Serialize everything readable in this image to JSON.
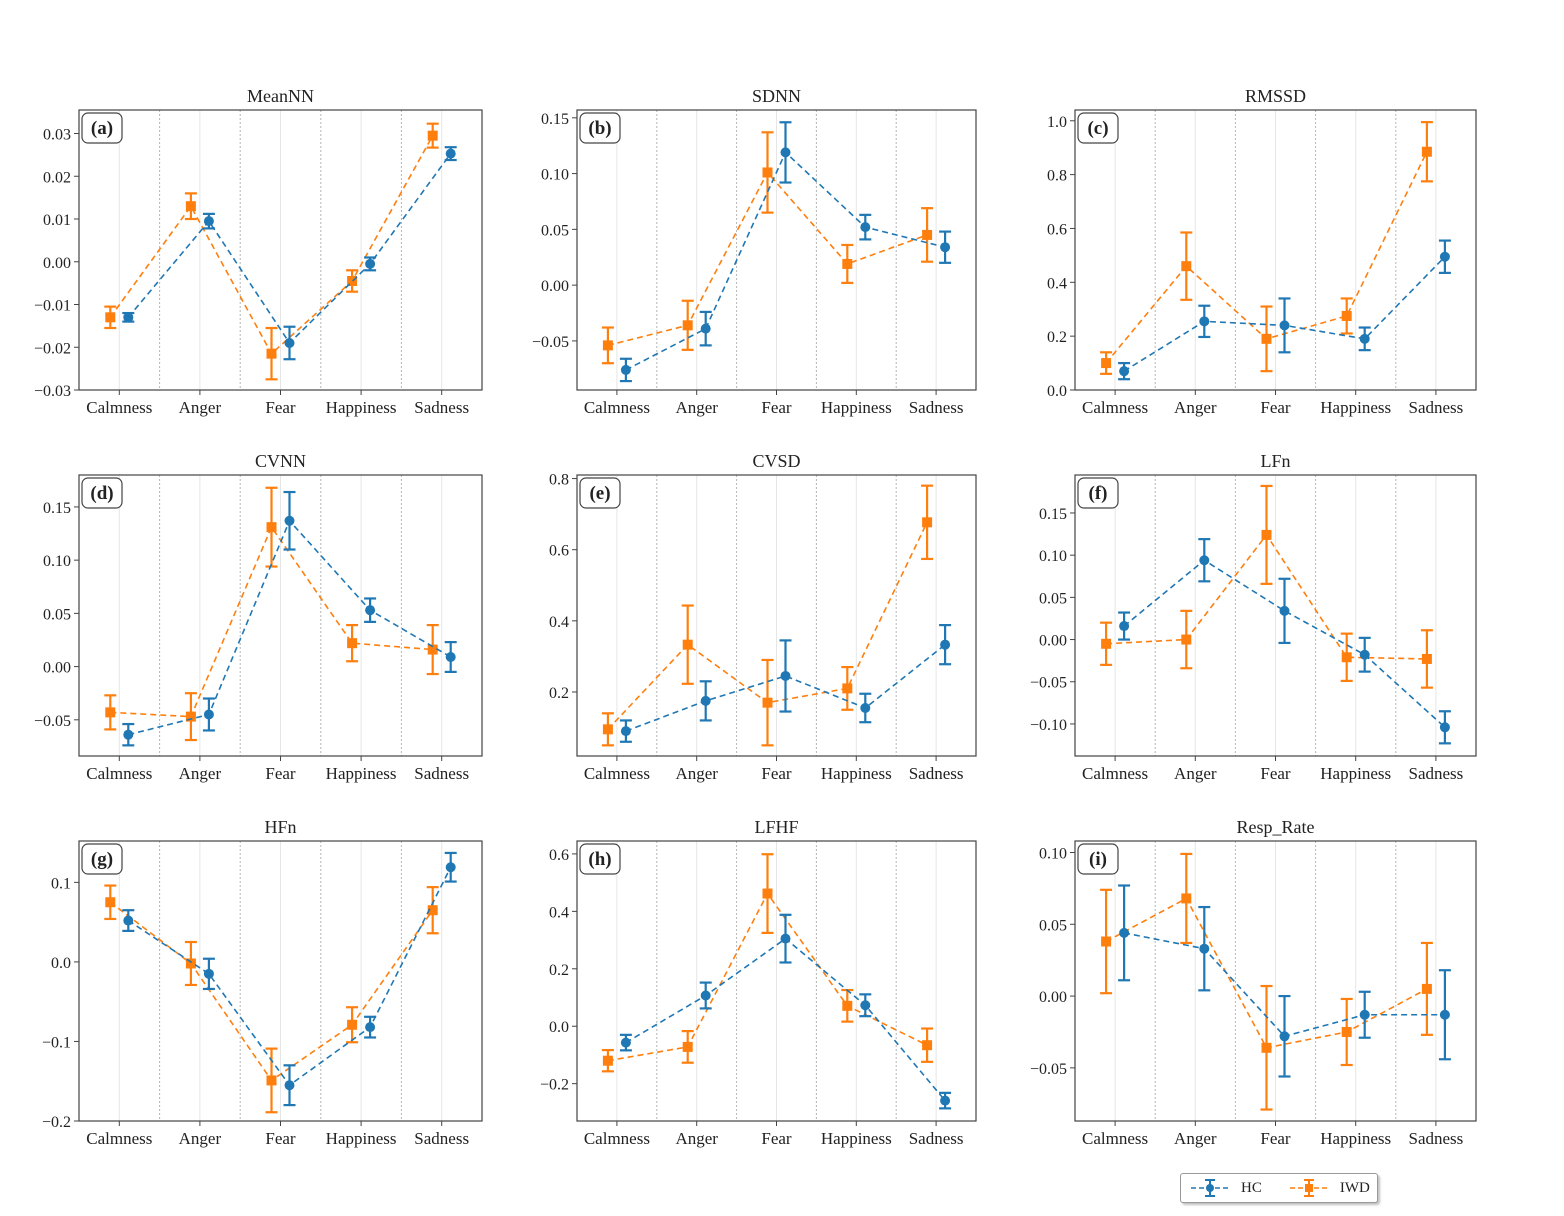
{
  "figure": {
    "legend": [
      {
        "label": "HC",
        "color": "#1f77b4",
        "marker": "circle"
      },
      {
        "label": "IWD",
        "color": "#ff7f0e",
        "marker": "square"
      }
    ]
  },
  "chart_data": [
    {
      "type": "line",
      "panel": "(a)",
      "title": "MeanNN",
      "categories": [
        "Calmness",
        "Anger",
        "Fear",
        "Happiness",
        "Sadness"
      ],
      "ylim": [
        -0.03,
        0.0355
      ],
      "yticks": [
        -0.03,
        -0.02,
        -0.01,
        0.0,
        0.01,
        0.02,
        0.03
      ],
      "ytick_labels": [
        "−0.03",
        "−0.02",
        "−0.01",
        "0.00",
        "0.01",
        "0.02",
        "0.03"
      ],
      "grid": "x",
      "xlabel": "",
      "ylabel": "",
      "series": [
        {
          "name": "HC",
          "values": [
            -0.013,
            0.0095,
            -0.019,
            -0.0005,
            0.0253
          ],
          "errors": [
            0.001,
            0.0017,
            0.0038,
            0.0015,
            0.0015
          ]
        },
        {
          "name": "IWD",
          "values": [
            -0.013,
            0.013,
            -0.0215,
            -0.0045,
            0.0295
          ],
          "errors": [
            0.0025,
            0.003,
            0.006,
            0.0025,
            0.0028
          ]
        }
      ]
    },
    {
      "type": "line",
      "panel": "(b)",
      "title": "SDNN",
      "categories": [
        "Calmness",
        "Anger",
        "Fear",
        "Happiness",
        "Sadness"
      ],
      "ylim": [
        -0.094,
        0.157
      ],
      "yticks": [
        -0.05,
        0.0,
        0.05,
        0.1,
        0.15
      ],
      "ytick_labels": [
        "−0.05",
        "0.00",
        "0.05",
        "0.10",
        "0.15"
      ],
      "grid": "x",
      "xlabel": "",
      "ylabel": "",
      "series": [
        {
          "name": "HC",
          "values": [
            -0.076,
            -0.039,
            0.119,
            0.052,
            0.034
          ],
          "errors": [
            0.01,
            0.015,
            0.027,
            0.011,
            0.014
          ]
        },
        {
          "name": "IWD",
          "values": [
            -0.054,
            -0.036,
            0.101,
            0.019,
            0.045
          ],
          "errors": [
            0.016,
            0.022,
            0.036,
            0.017,
            0.024
          ]
        }
      ]
    },
    {
      "type": "line",
      "panel": "(c)",
      "title": "RMSSD",
      "categories": [
        "Calmness",
        "Anger",
        "Fear",
        "Happiness",
        "Sadness"
      ],
      "ylim": [
        0.0,
        1.04
      ],
      "yticks": [
        0.0,
        0.2,
        0.4,
        0.6,
        0.8,
        1.0
      ],
      "ytick_labels": [
        "0.0",
        "0.2",
        "0.4",
        "0.6",
        "0.8",
        "1.0"
      ],
      "grid": "x",
      "xlabel": "",
      "ylabel": "",
      "series": [
        {
          "name": "HC",
          "values": [
            0.07,
            0.255,
            0.24,
            0.19,
            0.495
          ],
          "errors": [
            0.03,
            0.058,
            0.1,
            0.042,
            0.06
          ]
        },
        {
          "name": "IWD",
          "values": [
            0.1,
            0.46,
            0.19,
            0.275,
            0.885
          ],
          "errors": [
            0.04,
            0.125,
            0.12,
            0.065,
            0.11
          ]
        }
      ]
    },
    {
      "type": "line",
      "panel": "(d)",
      "title": "CVNN",
      "categories": [
        "Calmness",
        "Anger",
        "Fear",
        "Happiness",
        "Sadness"
      ],
      "ylim": [
        -0.084,
        0.18
      ],
      "yticks": [
        -0.05,
        0.0,
        0.05,
        0.1,
        0.15
      ],
      "ytick_labels": [
        "−0.05",
        "0.00",
        "0.05",
        "0.10",
        "0.15"
      ],
      "grid": "x",
      "xlabel": "",
      "ylabel": "",
      "series": [
        {
          "name": "HC",
          "values": [
            -0.064,
            -0.045,
            0.137,
            0.053,
            0.009
          ],
          "errors": [
            0.01,
            0.015,
            0.027,
            0.011,
            0.014
          ]
        },
        {
          "name": "IWD",
          "values": [
            -0.043,
            -0.047,
            0.131,
            0.022,
            0.016
          ],
          "errors": [
            0.016,
            0.022,
            0.037,
            0.017,
            0.023
          ]
        }
      ]
    },
    {
      "type": "line",
      "panel": "(e)",
      "title": "CVSD",
      "categories": [
        "Calmness",
        "Anger",
        "Fear",
        "Happiness",
        "Sadness"
      ],
      "ylim": [
        0.02,
        0.81
      ],
      "yticks": [
        0.2,
        0.4,
        0.6,
        0.8
      ],
      "ytick_labels": [
        "0.2",
        "0.4",
        "0.6",
        "0.8"
      ],
      "grid": "x",
      "xlabel": "",
      "ylabel": "",
      "series": [
        {
          "name": "HC",
          "values": [
            0.09,
            0.175,
            0.245,
            0.155,
            0.333
          ],
          "errors": [
            0.03,
            0.055,
            0.1,
            0.04,
            0.055
          ]
        },
        {
          "name": "IWD",
          "values": [
            0.095,
            0.333,
            0.17,
            0.21,
            0.677
          ],
          "errors": [
            0.045,
            0.11,
            0.12,
            0.06,
            0.103
          ]
        }
      ]
    },
    {
      "type": "line",
      "panel": "(f)",
      "title": "LFn",
      "categories": [
        "Calmness",
        "Anger",
        "Fear",
        "Happiness",
        "Sadness"
      ],
      "ylim": [
        -0.138,
        0.195
      ],
      "yticks": [
        -0.1,
        -0.05,
        0.0,
        0.05,
        0.1,
        0.15
      ],
      "ytick_labels": [
        "−0.10",
        "−0.05",
        "0.00",
        "0.05",
        "0.10",
        "0.15"
      ],
      "grid": "x",
      "xlabel": "",
      "ylabel": "",
      "series": [
        {
          "name": "HC",
          "values": [
            0.016,
            0.094,
            0.034,
            -0.018,
            -0.104
          ],
          "errors": [
            0.016,
            0.025,
            0.038,
            0.02,
            0.019
          ]
        },
        {
          "name": "IWD",
          "values": [
            -0.005,
            0.0,
            0.124,
            -0.021,
            -0.023
          ],
          "errors": [
            0.025,
            0.034,
            0.058,
            0.028,
            0.034
          ]
        }
      ]
    },
    {
      "type": "line",
      "panel": "(g)",
      "title": "HFn",
      "categories": [
        "Calmness",
        "Anger",
        "Fear",
        "Happiness",
        "Sadness"
      ],
      "ylim": [
        -0.2,
        0.152
      ],
      "yticks": [
        -0.2,
        -0.1,
        0.0,
        0.1
      ],
      "ytick_labels": [
        "−0.2",
        "−0.1",
        "0.0",
        "0.1"
      ],
      "grid": "x",
      "xlabel": "",
      "ylabel": "",
      "series": [
        {
          "name": "HC",
          "values": [
            0.052,
            -0.015,
            -0.155,
            -0.082,
            0.119
          ],
          "errors": [
            0.013,
            0.019,
            0.025,
            0.013,
            0.018
          ]
        },
        {
          "name": "IWD",
          "values": [
            0.075,
            -0.002,
            -0.149,
            -0.079,
            0.065
          ],
          "errors": [
            0.021,
            0.027,
            0.04,
            0.022,
            0.029
          ]
        }
      ]
    },
    {
      "type": "line",
      "panel": "(h)",
      "title": "LFHF",
      "categories": [
        "Calmness",
        "Anger",
        "Fear",
        "Happiness",
        "Sadness"
      ],
      "ylim": [
        -0.33,
        0.645
      ],
      "yticks": [
        -0.2,
        0.0,
        0.2,
        0.4,
        0.6
      ],
      "ytick_labels": [
        "−0.2",
        "0.0",
        "0.2",
        "0.4",
        "0.6"
      ],
      "grid": "x",
      "xlabel": "",
      "ylabel": "",
      "series": [
        {
          "name": "HC",
          "values": [
            -0.057,
            0.107,
            0.305,
            0.073,
            -0.259
          ],
          "errors": [
            0.027,
            0.045,
            0.083,
            0.038,
            0.027
          ]
        },
        {
          "name": "IWD",
          "values": [
            -0.12,
            -0.072,
            0.462,
            0.071,
            -0.066
          ],
          "errors": [
            0.037,
            0.055,
            0.137,
            0.055,
            0.058
          ]
        }
      ]
    },
    {
      "type": "line",
      "panel": "(i)",
      "title": "Resp_Rate",
      "categories": [
        "Calmness",
        "Anger",
        "Fear",
        "Happiness",
        "Sadness"
      ],
      "ylim": [
        -0.087,
        0.108
      ],
      "yticks": [
        -0.05,
        0.0,
        0.05,
        0.1
      ],
      "ytick_labels": [
        "−0.05",
        "0.00",
        "0.05",
        "0.10"
      ],
      "grid": "x",
      "xlabel": "",
      "ylabel": "",
      "series": [
        {
          "name": "HC",
          "values": [
            0.044,
            0.033,
            -0.028,
            -0.013,
            -0.013
          ],
          "errors": [
            0.033,
            0.029,
            0.028,
            0.016,
            0.031
          ]
        },
        {
          "name": "IWD",
          "values": [
            0.038,
            0.068,
            -0.036,
            -0.025,
            0.005
          ],
          "errors": [
            0.036,
            0.031,
            0.043,
            0.023,
            0.032
          ]
        }
      ]
    }
  ]
}
